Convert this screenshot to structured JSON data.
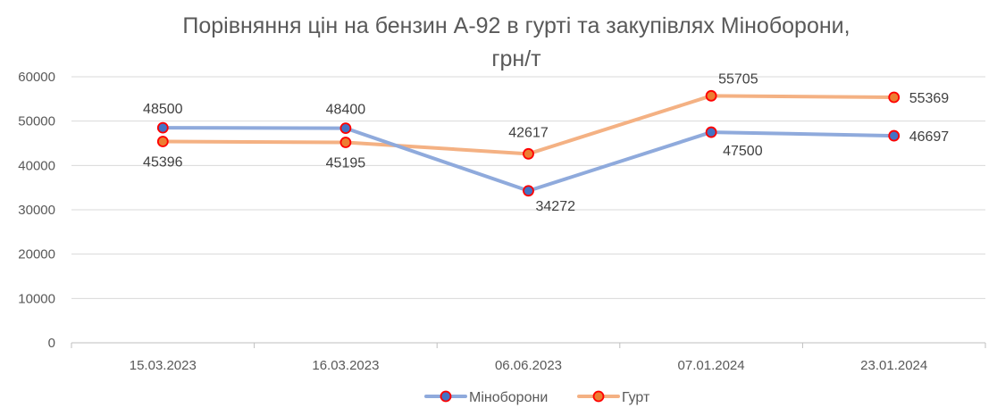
{
  "chart_data": {
    "type": "line",
    "title_line1": "Порівняння цін на бензин А-92 в гурті та закупівлях Міноборони,",
    "title_line2": "грн/т",
    "categories": [
      "15.03.2023",
      "16.03.2023",
      "06.06.2023",
      "07.01.2024",
      "23.01.2024"
    ],
    "ylim": [
      0,
      60000
    ],
    "yticks": [
      0,
      10000,
      20000,
      30000,
      40000,
      50000,
      60000
    ],
    "grid": true,
    "legend_position": "bottom",
    "series": [
      {
        "name": "Міноборони",
        "values": [
          48500,
          48400,
          34272,
          47500,
          46697
        ],
        "line_color": "#8faadc",
        "marker_fill": "#4472c4",
        "marker_edge": "#ff0000"
      },
      {
        "name": "Гурт",
        "values": [
          45396,
          45195,
          42617,
          55705,
          55369
        ],
        "line_color": "#f4b183",
        "marker_fill": "#ed7d31",
        "marker_edge": "#ff0000"
      }
    ]
  }
}
